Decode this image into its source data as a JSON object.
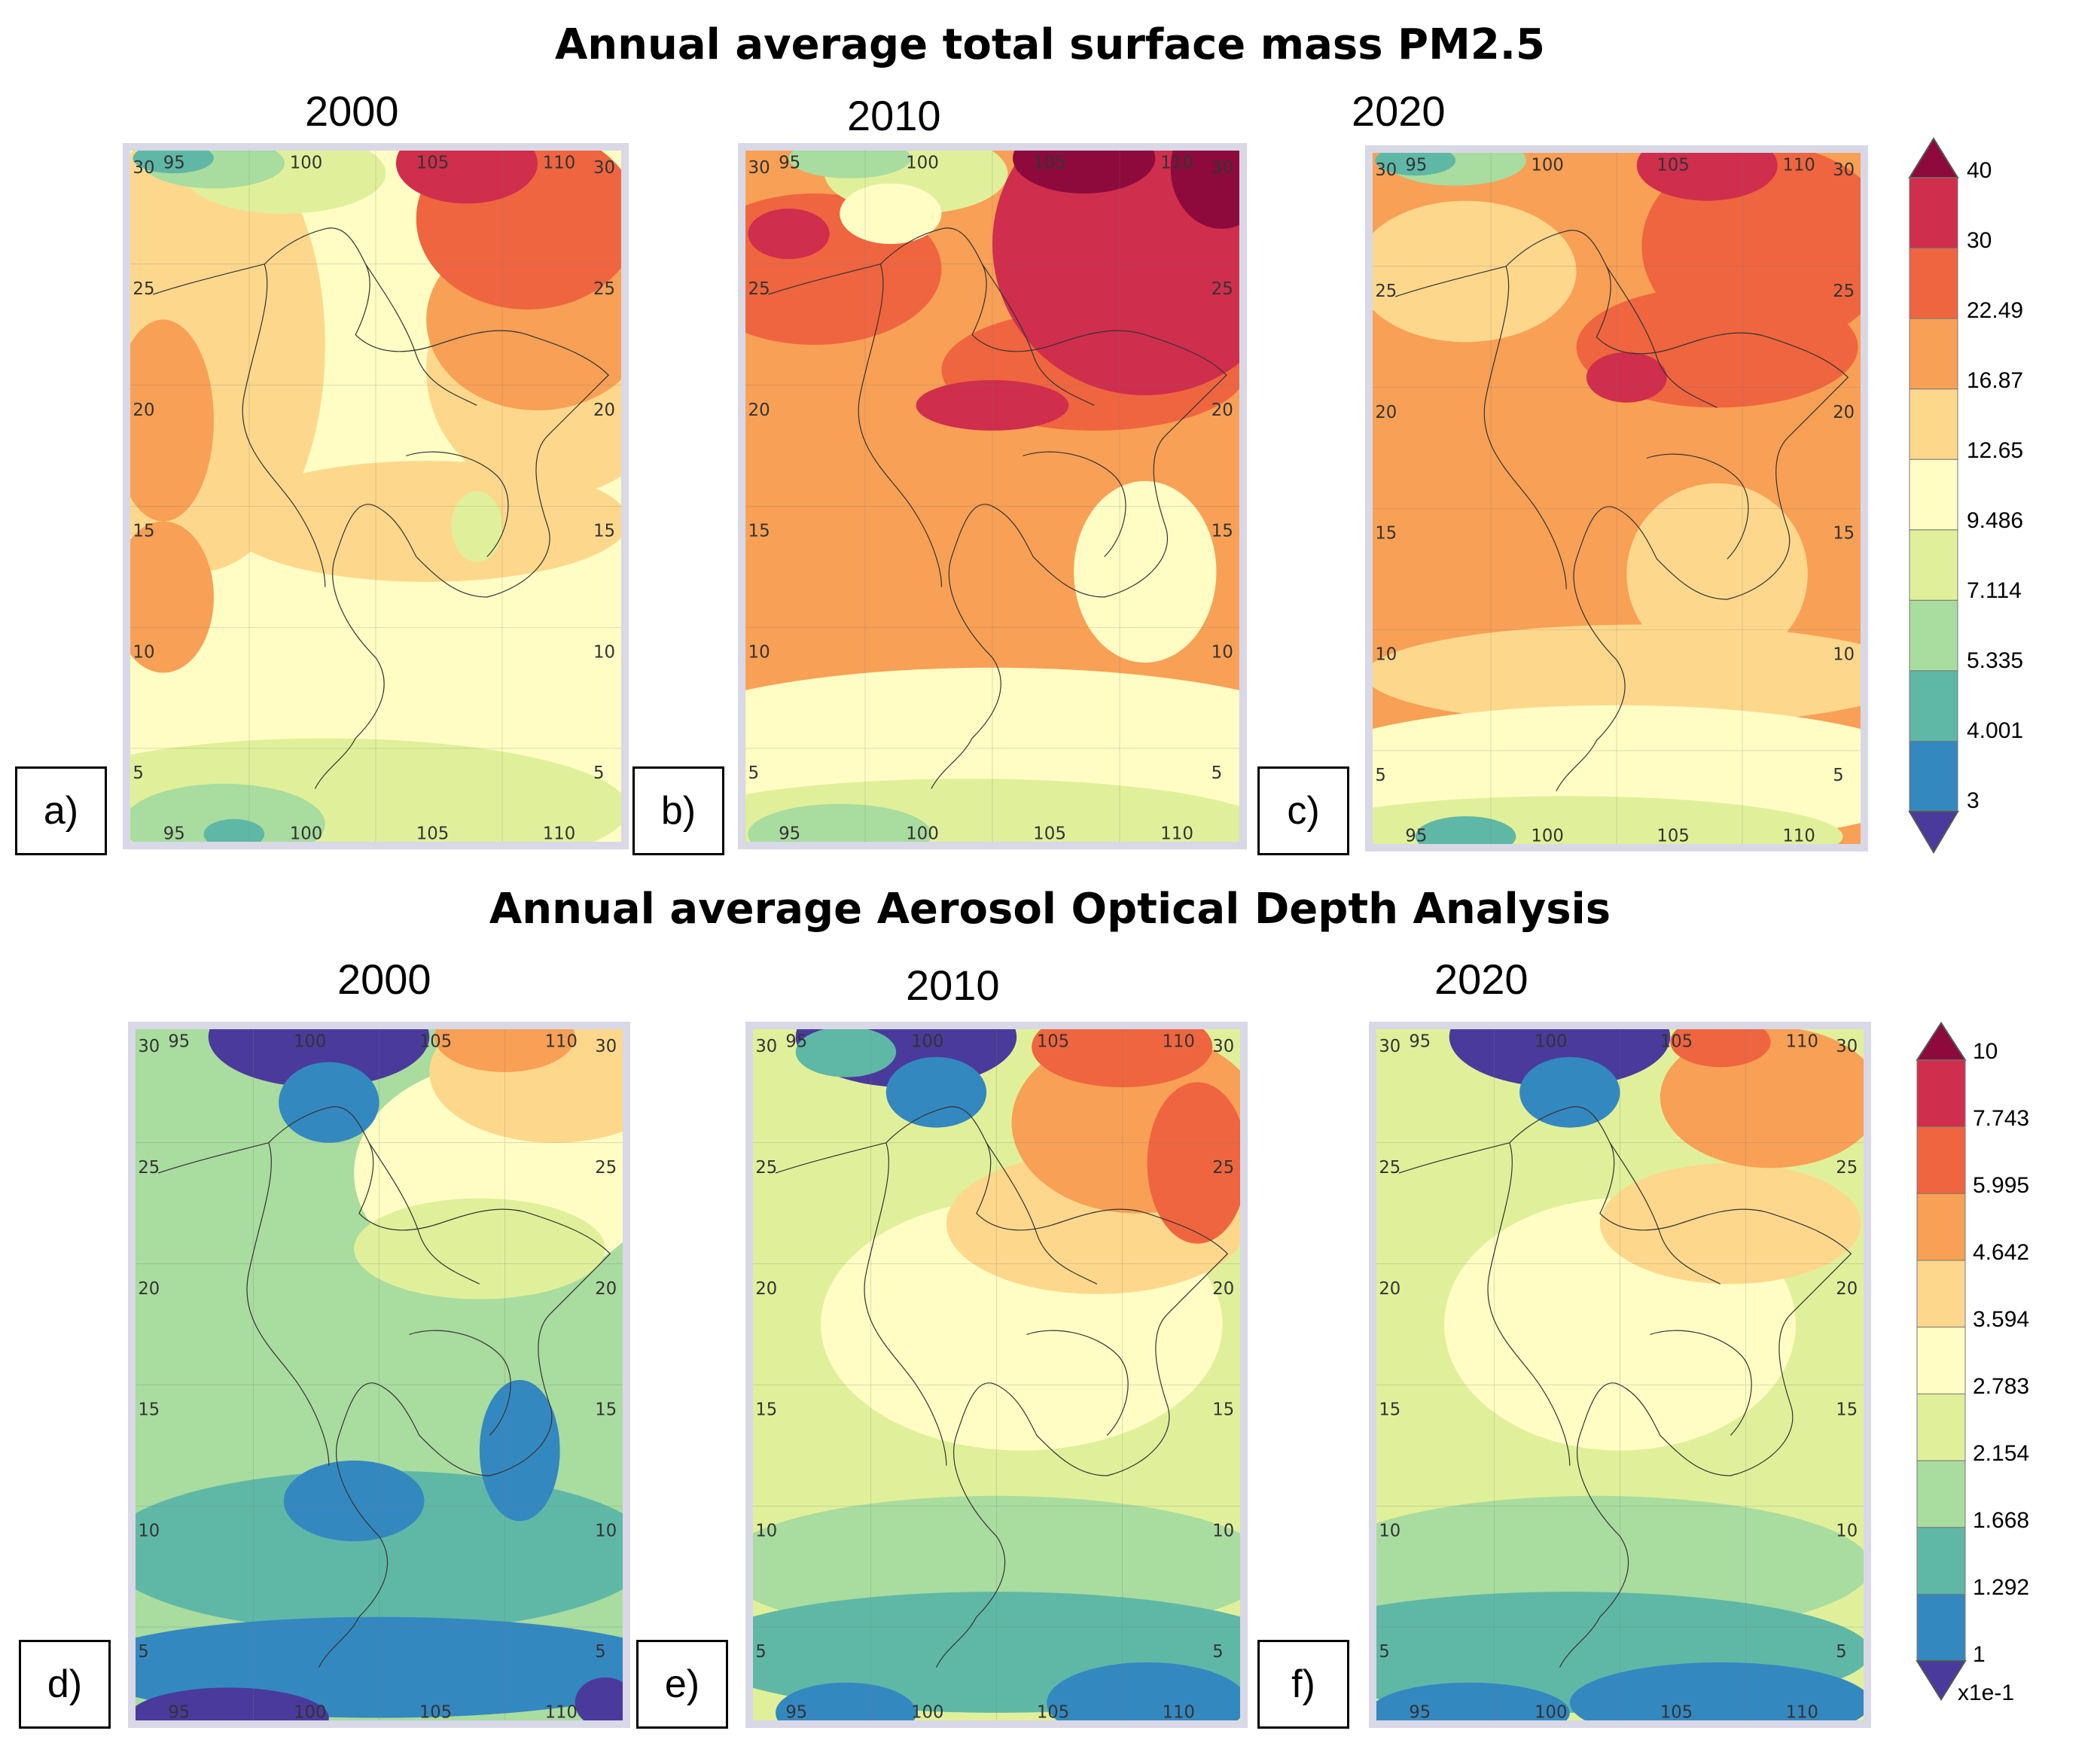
{
  "pm25": {
    "title": "Annual average total surface mass PM2.5",
    "legend": {
      "levels": [
        "40",
        "30",
        "22.49",
        "16.87",
        "12.65",
        "9.486",
        "7.114",
        "5.335",
        "4.001",
        "3"
      ],
      "colors": [
        "#8e0a3c",
        "#cf2e4d",
        "#ef653f",
        "#f8a055",
        "#fdd88c",
        "#fffdc4",
        "#e0f09a",
        "#a9dc9f",
        "#5fb8a6",
        "#3488c0",
        "#4a3a9c"
      ],
      "unit": ""
    },
    "panels": [
      {
        "tag": "a)",
        "year": "2000"
      },
      {
        "tag": "b)",
        "year": "2010"
      },
      {
        "tag": "c)",
        "year": "2020"
      }
    ]
  },
  "aod": {
    "title": "Annual average Aerosol Optical Depth Analysis",
    "legend": {
      "levels": [
        "10",
        "7.743",
        "5.995",
        "4.642",
        "3.594",
        "2.783",
        "2.154",
        "1.668",
        "1.292",
        "1"
      ],
      "colors": [
        "#8e0a3c",
        "#cf2e4d",
        "#ef653f",
        "#f8a055",
        "#fdd88c",
        "#fffdc4",
        "#e0f09a",
        "#a9dc9f",
        "#5fb8a6",
        "#3488c0",
        "#4a3a9c"
      ],
      "unit": "x1e-1"
    },
    "panels": [
      {
        "tag": "d)",
        "year": "2000"
      },
      {
        "tag": "e)",
        "year": "2010"
      },
      {
        "tag": "f)",
        "year": "2020"
      }
    ]
  },
  "map_ticks": {
    "longitudes": [
      "95",
      "100",
      "105",
      "110"
    ],
    "latitudes": [
      "30",
      "25",
      "20",
      "15",
      "10",
      "5"
    ]
  }
}
